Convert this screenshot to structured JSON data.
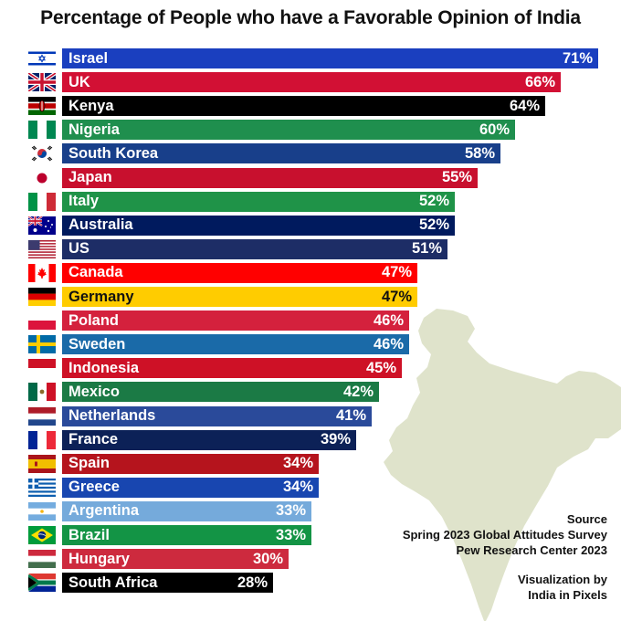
{
  "title": "Percentage of People who have a Favorable Opinion of India",
  "source": {
    "heading": "Source",
    "line1": "Spring 2023 Global Attitudes Survey",
    "line2": "Pew Research Center 2023"
  },
  "credit": {
    "line1": "Visualization by",
    "line2": "India in Pixels"
  },
  "map_color": "#dfe3cb",
  "chart_data": {
    "type": "bar",
    "orientation": "horizontal",
    "title": "Percentage of People who have a Favorable Opinion of India",
    "xlim": [
      0,
      71
    ],
    "categories": [
      "Israel",
      "UK",
      "Kenya",
      "Nigeria",
      "South Korea",
      "Japan",
      "Italy",
      "Australia",
      "US",
      "Canada",
      "Germany",
      "Poland",
      "Sweden",
      "Indonesia",
      "Mexico",
      "Netherlands",
      "France",
      "Spain",
      "Greece",
      "Argentina",
      "Brazil",
      "Hungary",
      "South Africa"
    ],
    "values": [
      71,
      66,
      64,
      60,
      58,
      55,
      52,
      52,
      51,
      47,
      47,
      46,
      46,
      45,
      42,
      41,
      39,
      34,
      34,
      33,
      33,
      30,
      28
    ],
    "value_labels": [
      "71%",
      "66%",
      "64%",
      "60%",
      "58%",
      "55%",
      "52%",
      "52%",
      "51%",
      "47%",
      "47%",
      "46%",
      "46%",
      "45%",
      "42%",
      "41%",
      "39%",
      "34%",
      "34%",
      "33%",
      "33%",
      "30%",
      "28%"
    ],
    "colors": [
      "#1a3fbf",
      "#d21034",
      "#000000",
      "#1f8f4e",
      "#183f8a",
      "#c8102e",
      "#1f9348",
      "#001a5e",
      "#1d2d66",
      "#ff0000",
      "#ffcc00",
      "#d4213d",
      "#1a6aa8",
      "#ce1126",
      "#1b7a45",
      "#2a4a9a",
      "#0c2157",
      "#b5141d",
      "#1846b0",
      "#75aadb",
      "#139445",
      "#cd2a3e",
      "#000000"
    ],
    "text_dark": [
      false,
      false,
      false,
      false,
      false,
      false,
      false,
      false,
      false,
      false,
      true,
      false,
      false,
      false,
      false,
      false,
      false,
      false,
      false,
      false,
      false,
      false,
      false
    ],
    "flags": [
      "israel-flag",
      "uk-flag",
      "kenya-flag",
      "nigeria-flag",
      "south-korea-flag",
      "japan-flag",
      "italy-flag",
      "australia-flag",
      "us-flag",
      "canada-flag",
      "germany-flag",
      "poland-flag",
      "sweden-flag",
      "indonesia-flag",
      "mexico-flag",
      "netherlands-flag",
      "france-flag",
      "spain-flag",
      "greece-flag",
      "argentina-flag",
      "brazil-flag",
      "hungary-flag",
      "south-africa-flag"
    ]
  }
}
